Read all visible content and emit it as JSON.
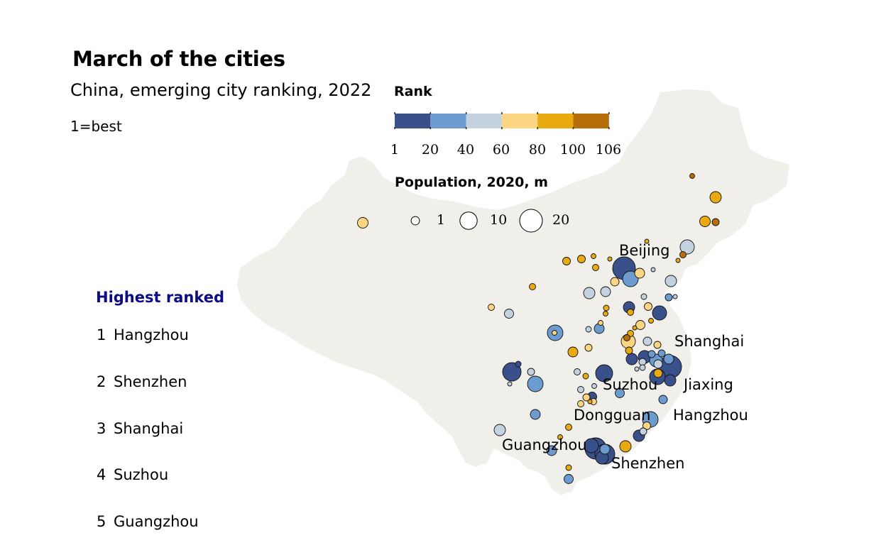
{
  "title": "March of the cities",
  "subtitle": "China, emerging city ranking, 2022",
  "note": "1=best",
  "rank_legend": {
    "title": "Rank",
    "ticks": [
      "1",
      "20",
      "40",
      "60",
      "80",
      "100",
      "106"
    ],
    "colors": [
      "#3a508a",
      "#6c9ccf",
      "#c4d1de",
      "#fbd581",
      "#e8a911",
      "#b76e0a"
    ]
  },
  "population_legend": {
    "title": "Population, 2020, m",
    "labels": [
      "1",
      "10",
      "20"
    ],
    "values": [
      1,
      10,
      20
    ]
  },
  "highest_ranked": {
    "heading": "Highest ranked",
    "items": [
      {
        "rank": "1",
        "city": "Hangzhou"
      },
      {
        "rank": "2",
        "city": "Shenzhen"
      },
      {
        "rank": "3",
        "city": "Shanghai"
      },
      {
        "rank": "4",
        "city": "Suzhou"
      },
      {
        "rank": "5",
        "city": "Guangzhou"
      }
    ]
  },
  "city_labels": {
    "beijing": "Beijing",
    "shanghai": "Shanghai",
    "suzhou": "Suzhou",
    "jiaxing": "Jiaxing",
    "dongguan": "Dongguan",
    "hangzhou": "Hangzhou",
    "guangzhou": "Guangzhou",
    "shenzhen": "Shenzhen"
  },
  "colors": {
    "land": "#f0efe9",
    "heading_accent": "#0b0c84"
  }
}
